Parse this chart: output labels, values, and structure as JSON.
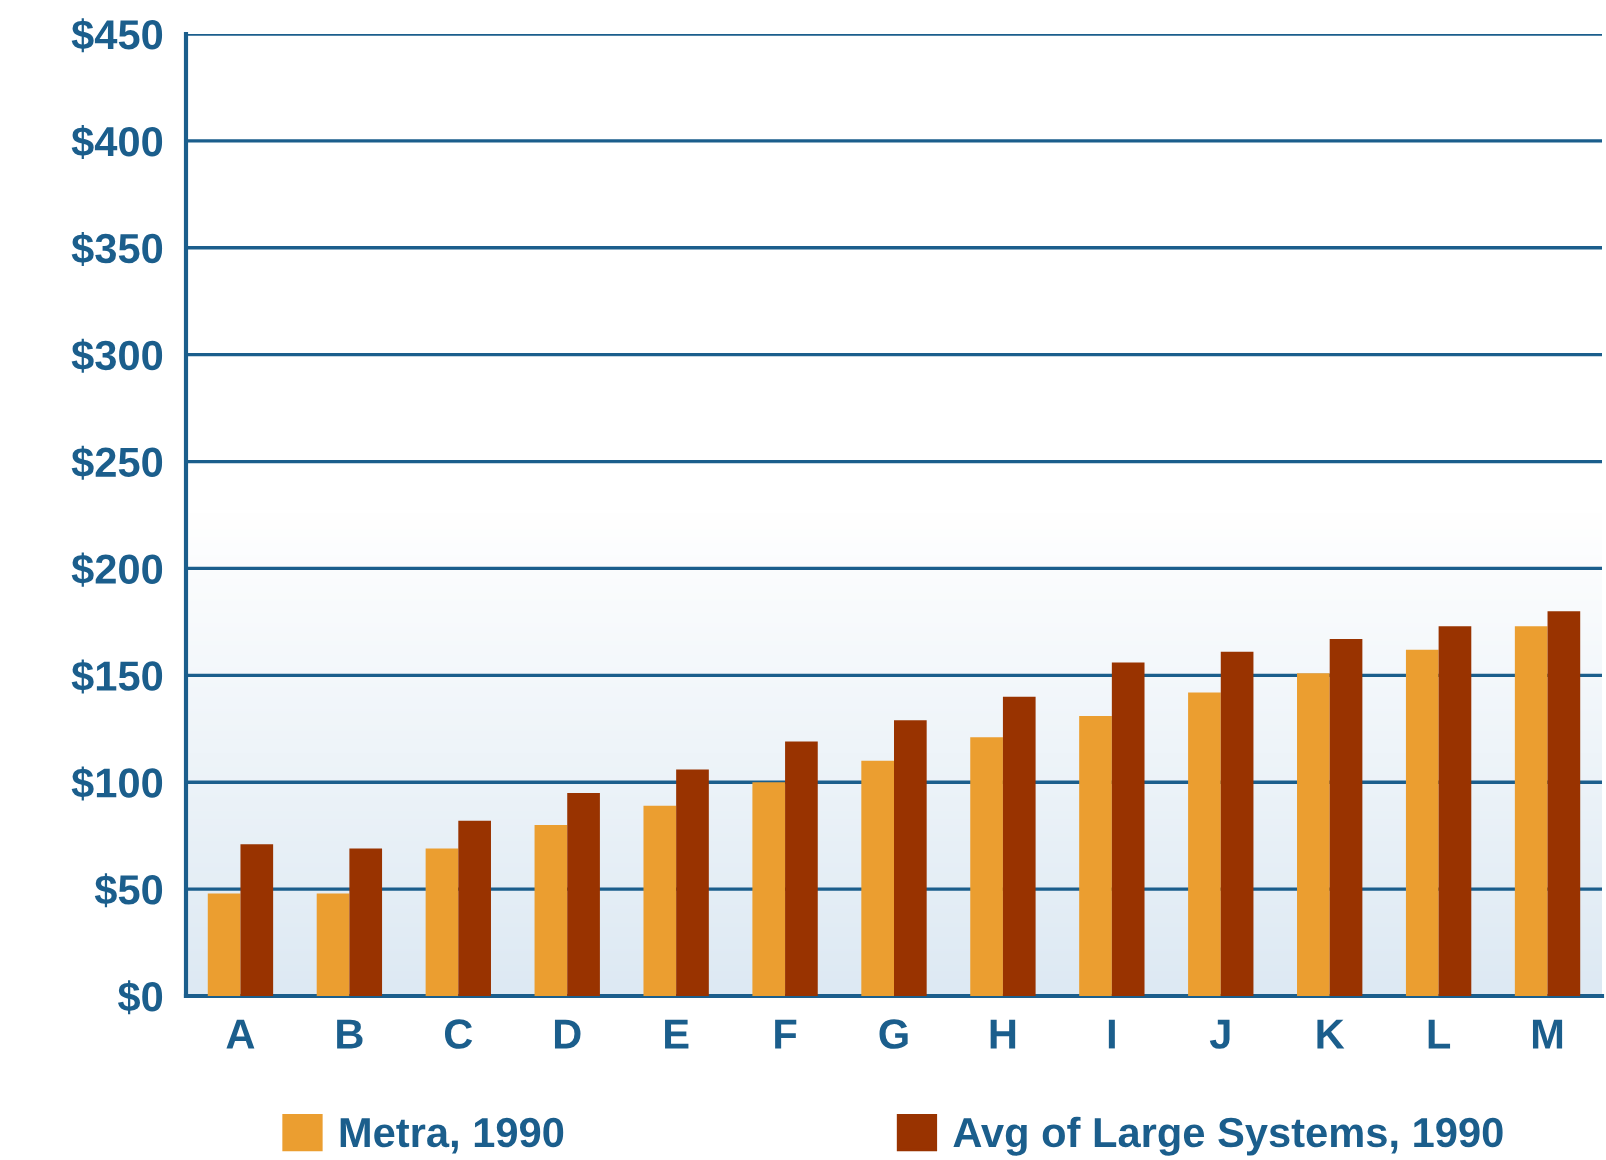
{
  "chart_data": {
    "type": "bar",
    "categories": [
      "A",
      "B",
      "C",
      "D",
      "E",
      "F",
      "G",
      "H",
      "I",
      "J",
      "K",
      "L",
      "M"
    ],
    "series": [
      {
        "name": "Metra, 1990",
        "color": "#eb9e30",
        "values": [
          48,
          48,
          69,
          80,
          89,
          100,
          110,
          121,
          131,
          142,
          151,
          162,
          173
        ]
      },
      {
        "name": "Avg of Large Systems, 1990",
        "color": "#993300",
        "values": [
          71,
          69,
          82,
          95,
          106,
          119,
          129,
          140,
          156,
          161,
          167,
          173,
          180
        ]
      }
    ],
    "ylim": [
      0,
      450
    ],
    "yticks": [
      {
        "value": 0,
        "label": "$0"
      },
      {
        "value": 50,
        "label": "$50"
      },
      {
        "value": 100,
        "label": "$100"
      },
      {
        "value": 150,
        "label": "$150"
      },
      {
        "value": 200,
        "label": "$200"
      },
      {
        "value": 250,
        "label": "$250"
      },
      {
        "value": 300,
        "label": "$300"
      },
      {
        "value": 350,
        "label": "$350"
      },
      {
        "value": 400,
        "label": "$400"
      },
      {
        "value": 450,
        "label": "$450"
      }
    ],
    "grid": "y",
    "legend": "bottom"
  }
}
